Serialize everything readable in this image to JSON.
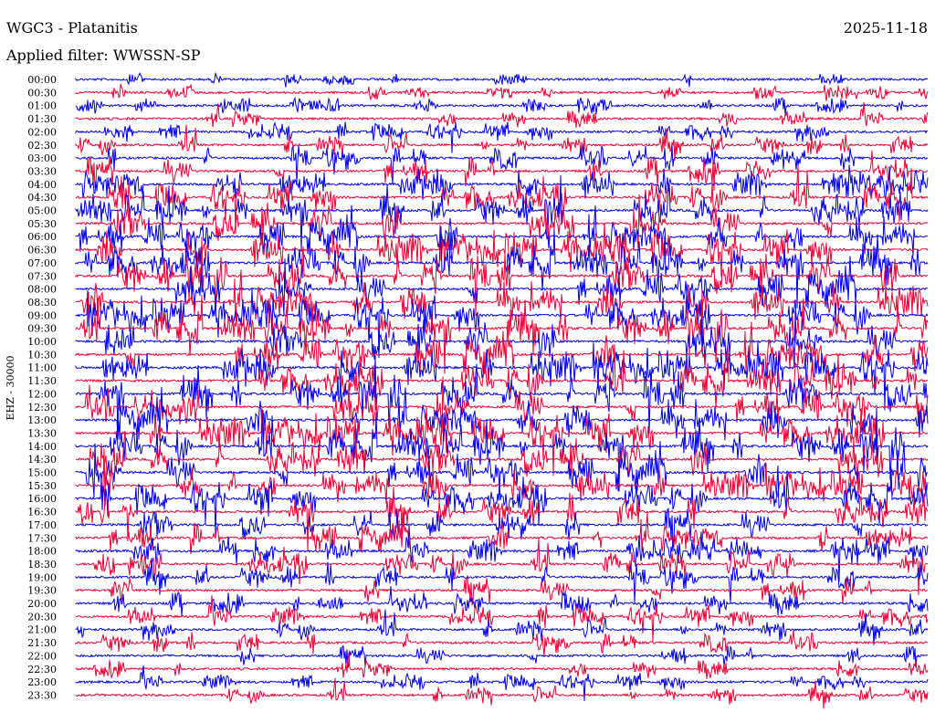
{
  "header": {
    "station": "WGC3 - Platanitis",
    "date": "2025-11-18",
    "filter": "Applied filter: WWSSN-SP"
  },
  "chart_data": {
    "type": "line",
    "title": "WGC3 - Platanitis",
    "subtitle": "Applied filter: WWSSN-SP",
    "date": "2025-11-18",
    "ylabel": "EHZ - 30000",
    "xlabel": "",
    "row_labels": [
      "00:00",
      "00:30",
      "01:00",
      "01:30",
      "02:00",
      "02:30",
      "03:00",
      "03:30",
      "04:00",
      "04:30",
      "05:00",
      "05:30",
      "06:00",
      "06:30",
      "07:00",
      "07:30",
      "08:00",
      "08:30",
      "09:00",
      "09:30",
      "10:00",
      "10:30",
      "11:00",
      "11:30",
      "12:00",
      "12:30",
      "13:00",
      "13:30",
      "14:00",
      "14:30",
      "15:00",
      "15:30",
      "16:00",
      "16:30",
      "17:00",
      "17:30",
      "18:00",
      "18:30",
      "19:00",
      "19:30",
      "20:00",
      "20:30",
      "21:00",
      "21:30",
      "22:00",
      "22:30",
      "23:00",
      "23:30"
    ],
    "trace_colors": [
      "#0000ee",
      "#ee0033"
    ],
    "activity_level": [
      0.15,
      0.2,
      0.25,
      0.3,
      0.35,
      0.4,
      0.5,
      0.6,
      0.7,
      0.75,
      0.8,
      0.85,
      0.85,
      0.9,
      0.9,
      0.9,
      0.9,
      0.9,
      0.9,
      0.9,
      0.9,
      0.9,
      0.9,
      0.9,
      0.9,
      0.9,
      0.9,
      0.9,
      0.9,
      0.85,
      0.85,
      0.8,
      0.8,
      0.75,
      0.7,
      0.65,
      0.6,
      0.55,
      0.5,
      0.5,
      0.45,
      0.45,
      0.4,
      0.4,
      0.35,
      0.35,
      0.3,
      0.3
    ],
    "grid": false
  }
}
